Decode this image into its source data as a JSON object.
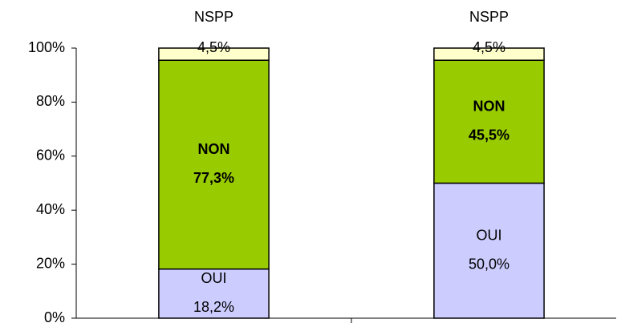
{
  "chart_data": {
    "type": "stacked_bar",
    "categories": [
      null,
      null
    ],
    "series": [
      {
        "name": "OUI",
        "color": "#ccccff",
        "values": [
          18.2,
          50.0
        ],
        "value_labels": [
          "18,2%",
          "50,0%"
        ]
      },
      {
        "name": "NON",
        "color": "#99cc00",
        "values": [
          77.3,
          45.5
        ],
        "value_labels": [
          "77,3%",
          "45,5%"
        ]
      },
      {
        "name": "NSPP",
        "color": "#ffffcc",
        "values": [
          4.5,
          4.5
        ],
        "value_labels": [
          "4,5%",
          "4,5%"
        ]
      }
    ],
    "ylim": [
      0,
      100
    ],
    "yticks": [
      {
        "value": 0,
        "label": "0%"
      },
      {
        "value": 20,
        "label": "20%"
      },
      {
        "value": 40,
        "label": "40%"
      },
      {
        "value": 60,
        "label": "60%"
      },
      {
        "value": 80,
        "label": "80%"
      },
      {
        "value": 100,
        "label": "100%"
      }
    ]
  }
}
